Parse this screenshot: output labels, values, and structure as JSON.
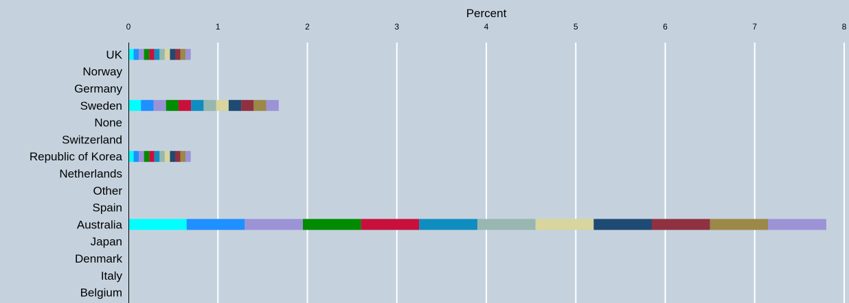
{
  "chart_data": {
    "type": "bar",
    "orientation": "horizontal",
    "stacked": true,
    "xlabel": "Percent",
    "ylabel": "",
    "xlim": [
      0,
      8
    ],
    "xticks": [
      "0",
      "1",
      "2",
      "3",
      "4",
      "5",
      "6",
      "7",
      "8"
    ],
    "grid": true,
    "categories": [
      "UK",
      "Norway",
      "Germany",
      "Sweden",
      "None",
      "Switzerland",
      "Republic of Korea",
      "Netherlands",
      "Other",
      "Spain",
      "Australia",
      "Japan",
      "Denmark",
      "Italy",
      "Belgium"
    ],
    "segment_colors": [
      "#00ffff",
      "#1e90ff",
      "#9b93d6",
      "#008b00",
      "#c8103c",
      "#0f8dc0",
      "#97b7b0",
      "#d8d59e",
      "#1e4a73",
      "#8f3140",
      "#9c8847",
      "#9b93d6"
    ],
    "series": [
      {
        "values": [
          0.058,
          0,
          0,
          0.14,
          0,
          0,
          0.058,
          0,
          0,
          0,
          0.65,
          0,
          0,
          0,
          0
        ]
      },
      {
        "values": [
          0.058,
          0,
          0,
          0.14,
          0,
          0,
          0.058,
          0,
          0,
          0,
          0.65,
          0,
          0,
          0,
          0
        ]
      },
      {
        "values": [
          0.058,
          0,
          0,
          0.14,
          0,
          0,
          0.058,
          0,
          0,
          0,
          0.65,
          0,
          0,
          0,
          0
        ]
      },
      {
        "values": [
          0.058,
          0,
          0,
          0.14,
          0,
          0,
          0.058,
          0,
          0,
          0,
          0.65,
          0,
          0,
          0,
          0
        ]
      },
      {
        "values": [
          0.058,
          0,
          0,
          0.14,
          0,
          0,
          0.058,
          0,
          0,
          0,
          0.65,
          0,
          0,
          0,
          0
        ]
      },
      {
        "values": [
          0.058,
          0,
          0,
          0.14,
          0,
          0,
          0.058,
          0,
          0,
          0,
          0.65,
          0,
          0,
          0,
          0
        ]
      },
      {
        "values": [
          0.058,
          0,
          0,
          0.14,
          0,
          0,
          0.058,
          0,
          0,
          0,
          0.65,
          0,
          0,
          0,
          0
        ]
      },
      {
        "values": [
          0.058,
          0,
          0,
          0.14,
          0,
          0,
          0.058,
          0,
          0,
          0,
          0.65,
          0,
          0,
          0,
          0
        ]
      },
      {
        "values": [
          0.058,
          0,
          0,
          0.14,
          0,
          0,
          0.058,
          0,
          0,
          0,
          0.65,
          0,
          0,
          0,
          0
        ]
      },
      {
        "values": [
          0.058,
          0,
          0,
          0.14,
          0,
          0,
          0.058,
          0,
          0,
          0,
          0.65,
          0,
          0,
          0,
          0
        ]
      },
      {
        "values": [
          0.058,
          0,
          0,
          0.14,
          0,
          0,
          0.058,
          0,
          0,
          0,
          0.65,
          0,
          0,
          0,
          0
        ]
      },
      {
        "values": [
          0.058,
          0,
          0,
          0.14,
          0,
          0,
          0.058,
          0,
          0,
          0,
          0.65,
          0,
          0,
          0,
          0
        ]
      }
    ],
    "totals": [
      0.69,
      0,
      0,
      1.69,
      0,
      0,
      0.69,
      0,
      0,
      0,
      7.79,
      0,
      0,
      0,
      0
    ],
    "background": "#c5d2de",
    "gridline_color": "#ffffff"
  }
}
